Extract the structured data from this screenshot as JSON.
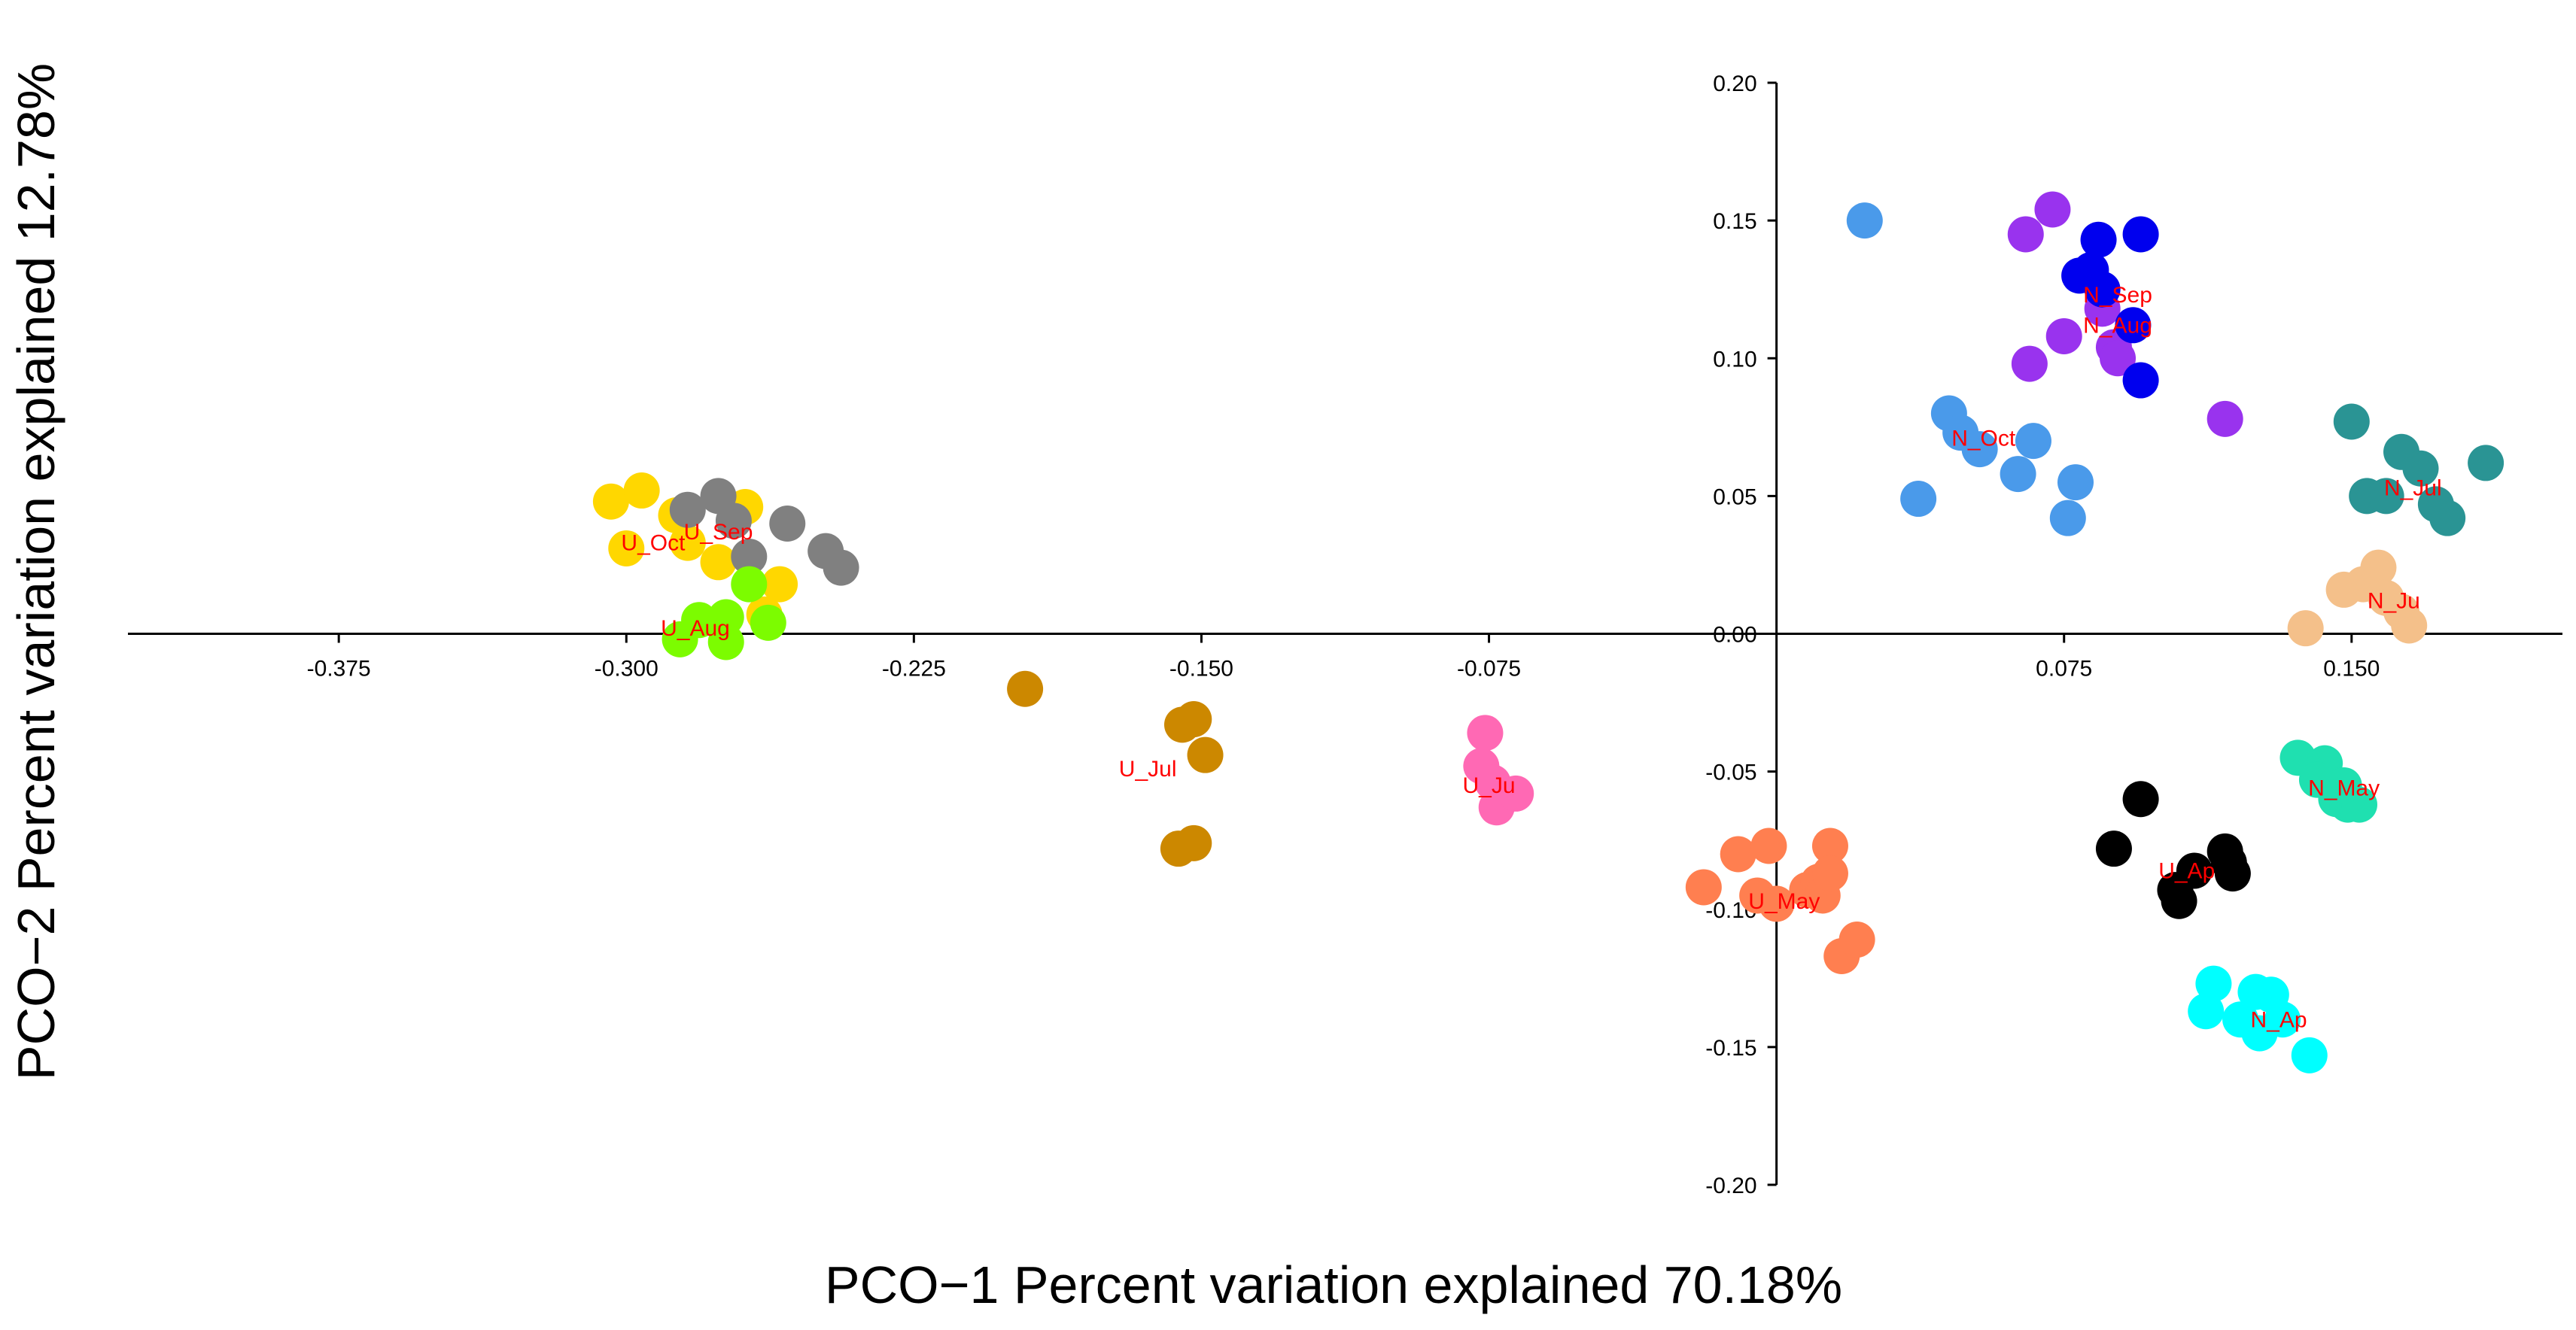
{
  "chart_data": {
    "type": "scatter",
    "title": "",
    "xlabel": "PCO−1 Percent variation explained 70.18%",
    "ylabel": "PCO−2 Percent variation explained 12.78%",
    "xlim": [
      -0.43,
      0.205
    ],
    "ylim": [
      -0.2,
      0.2
    ],
    "x_ticks": [
      "-0.375",
      "-0.300",
      "-0.225",
      "-0.150",
      "-0.075",
      "0.075",
      "0.150"
    ],
    "x_tick_values": [
      -0.375,
      -0.3,
      -0.225,
      -0.15,
      -0.075,
      0.075,
      0.15
    ],
    "y_ticks": [
      "0.20",
      "0.15",
      "0.10",
      "0.05",
      "0.00",
      "-0.05",
      "-0.10",
      "-0.15",
      "-0.20"
    ],
    "y_tick_values": [
      0.2,
      0.15,
      0.1,
      0.05,
      0.0,
      -0.05,
      -0.1,
      -0.15,
      -0.2
    ],
    "grid": false,
    "series": [
      {
        "name": "U_Oct",
        "color": "#FFD700",
        "label_at": [
          -0.293,
          0.033
        ],
        "points": [
          [
            -0.304,
            0.048
          ],
          [
            -0.296,
            0.052
          ],
          [
            -0.3,
            0.031
          ],
          [
            -0.287,
            0.043
          ],
          [
            -0.284,
            0.033
          ],
          [
            -0.276,
            0.026
          ],
          [
            -0.269,
            0.046
          ],
          [
            -0.264,
            0.007
          ],
          [
            -0.26,
            0.018
          ]
        ]
      },
      {
        "name": "U_Sep",
        "color": "#808080",
        "label_at": [
          -0.276,
          0.037
        ],
        "points": [
          [
            -0.284,
            0.045
          ],
          [
            -0.276,
            0.05
          ],
          [
            -0.272,
            0.041
          ],
          [
            -0.268,
            0.028
          ],
          [
            -0.258,
            0.04
          ],
          [
            -0.248,
            0.03
          ],
          [
            -0.244,
            0.024
          ]
        ]
      },
      {
        "name": "U_Aug",
        "color": "#7CFC00",
        "label_at": [
          -0.282,
          0.002
        ],
        "points": [
          [
            -0.286,
            -0.002
          ],
          [
            -0.281,
            0.005
          ],
          [
            -0.274,
            0.006
          ],
          [
            -0.274,
            -0.003
          ],
          [
            -0.268,
            0.018
          ],
          [
            -0.263,
            0.004
          ]
        ]
      },
      {
        "name": "U_Jul",
        "color": "#CC8800",
        "label_at": [
          -0.164,
          -0.049
        ],
        "points": [
          [
            -0.196,
            -0.02
          ],
          [
            -0.155,
            -0.033
          ],
          [
            -0.152,
            -0.031
          ],
          [
            -0.149,
            -0.044
          ],
          [
            -0.156,
            -0.078
          ],
          [
            -0.152,
            -0.076
          ]
        ]
      },
      {
        "name": "U_Ju",
        "color": "#FF69B4",
        "label_at": [
          -0.075,
          -0.055
        ],
        "points": [
          [
            -0.076,
            -0.036
          ],
          [
            -0.077,
            -0.048
          ],
          [
            -0.074,
            -0.054
          ],
          [
            -0.073,
            -0.063
          ],
          [
            -0.068,
            -0.058
          ]
        ]
      },
      {
        "name": "U_May",
        "color": "#FF7F50",
        "label_at": [
          0.002,
          -0.097
        ],
        "points": [
          [
            -0.019,
            -0.092
          ],
          [
            -0.01,
            -0.08
          ],
          [
            -0.002,
            -0.077
          ],
          [
            -0.005,
            -0.095
          ],
          [
            0.0,
            -0.098
          ],
          [
            0.008,
            -0.093
          ],
          [
            0.011,
            -0.09
          ],
          [
            0.014,
            -0.077
          ],
          [
            0.012,
            -0.095
          ],
          [
            0.014,
            -0.087
          ],
          [
            0.017,
            -0.117
          ],
          [
            0.021,
            -0.111
          ]
        ]
      },
      {
        "name": "U_Ap",
        "color": "#000000",
        "label_at": [
          0.107,
          -0.086
        ],
        "points": [
          [
            0.095,
            -0.06
          ],
          [
            0.088,
            -0.078
          ],
          [
            0.104,
            -0.093
          ],
          [
            0.105,
            -0.097
          ],
          [
            0.109,
            -0.086
          ],
          [
            0.117,
            -0.079
          ],
          [
            0.118,
            -0.083
          ],
          [
            0.119,
            -0.087
          ]
        ]
      },
      {
        "name": "N_Ap",
        "color": "#00FFFF",
        "label_at": [
          0.131,
          -0.14
        ],
        "points": [
          [
            0.114,
            -0.127
          ],
          [
            0.112,
            -0.137
          ],
          [
            0.121,
            -0.14
          ],
          [
            0.125,
            -0.13
          ],
          [
            0.129,
            -0.131
          ],
          [
            0.126,
            -0.145
          ],
          [
            0.132,
            -0.14
          ],
          [
            0.139,
            -0.153
          ]
        ]
      },
      {
        "name": "N_May",
        "color": "#1FE0B0",
        "label_at": [
          0.148,
          -0.056
        ],
        "points": [
          [
            0.136,
            -0.045
          ],
          [
            0.143,
            -0.047
          ],
          [
            0.141,
            -0.053
          ],
          [
            0.146,
            -0.06
          ],
          [
            0.149,
            -0.062
          ],
          [
            0.152,
            -0.062
          ],
          [
            0.148,
            -0.055
          ]
        ]
      },
      {
        "name": "N_Ju",
        "color": "#F4C08A",
        "label_at": [
          0.161,
          0.012
        ],
        "points": [
          [
            0.138,
            0.002
          ],
          [
            0.148,
            0.016
          ],
          [
            0.153,
            0.018
          ],
          [
            0.157,
            0.024
          ],
          [
            0.159,
            0.013
          ],
          [
            0.163,
            0.008
          ],
          [
            0.165,
            0.003
          ]
        ]
      },
      {
        "name": "N_Jul",
        "color": "#2A9494",
        "label_at": [
          0.166,
          0.053
        ],
        "points": [
          [
            0.15,
            0.077
          ],
          [
            0.154,
            0.05
          ],
          [
            0.159,
            0.05
          ],
          [
            0.163,
            0.066
          ],
          [
            0.168,
            0.06
          ],
          [
            0.172,
            0.047
          ],
          [
            0.175,
            0.042
          ],
          [
            0.185,
            0.062
          ]
        ]
      },
      {
        "name": "N_Oct",
        "color": "#4A9AEA",
        "label_at": [
          0.054,
          0.071
        ],
        "points": [
          [
            0.023,
            0.15
          ],
          [
            0.037,
            0.049
          ],
          [
            0.045,
            0.08
          ],
          [
            0.048,
            0.073
          ],
          [
            0.053,
            0.067
          ],
          [
            0.063,
            0.058
          ],
          [
            0.067,
            0.07
          ],
          [
            0.076,
            0.042
          ],
          [
            0.078,
            0.055
          ]
        ]
      },
      {
        "name": "N_Aug",
        "color": "#9933EE",
        "label_at": [
          0.089,
          0.112
        ],
        "points": [
          [
            0.065,
            0.145
          ],
          [
            0.072,
            0.154
          ],
          [
            0.066,
            0.098
          ],
          [
            0.075,
            0.108
          ],
          [
            0.085,
            0.118
          ],
          [
            0.088,
            0.104
          ],
          [
            0.089,
            0.1
          ],
          [
            0.117,
            0.078
          ]
        ]
      },
      {
        "name": "N_Sep",
        "color": "#0000EE",
        "label_at": [
          0.089,
          0.123
        ],
        "points": [
          [
            0.079,
            0.13
          ],
          [
            0.082,
            0.132
          ],
          [
            0.084,
            0.143
          ],
          [
            0.085,
            0.125
          ],
          [
            0.093,
            0.112
          ],
          [
            0.095,
            0.145
          ],
          [
            0.095,
            0.092
          ]
        ]
      }
    ]
  }
}
